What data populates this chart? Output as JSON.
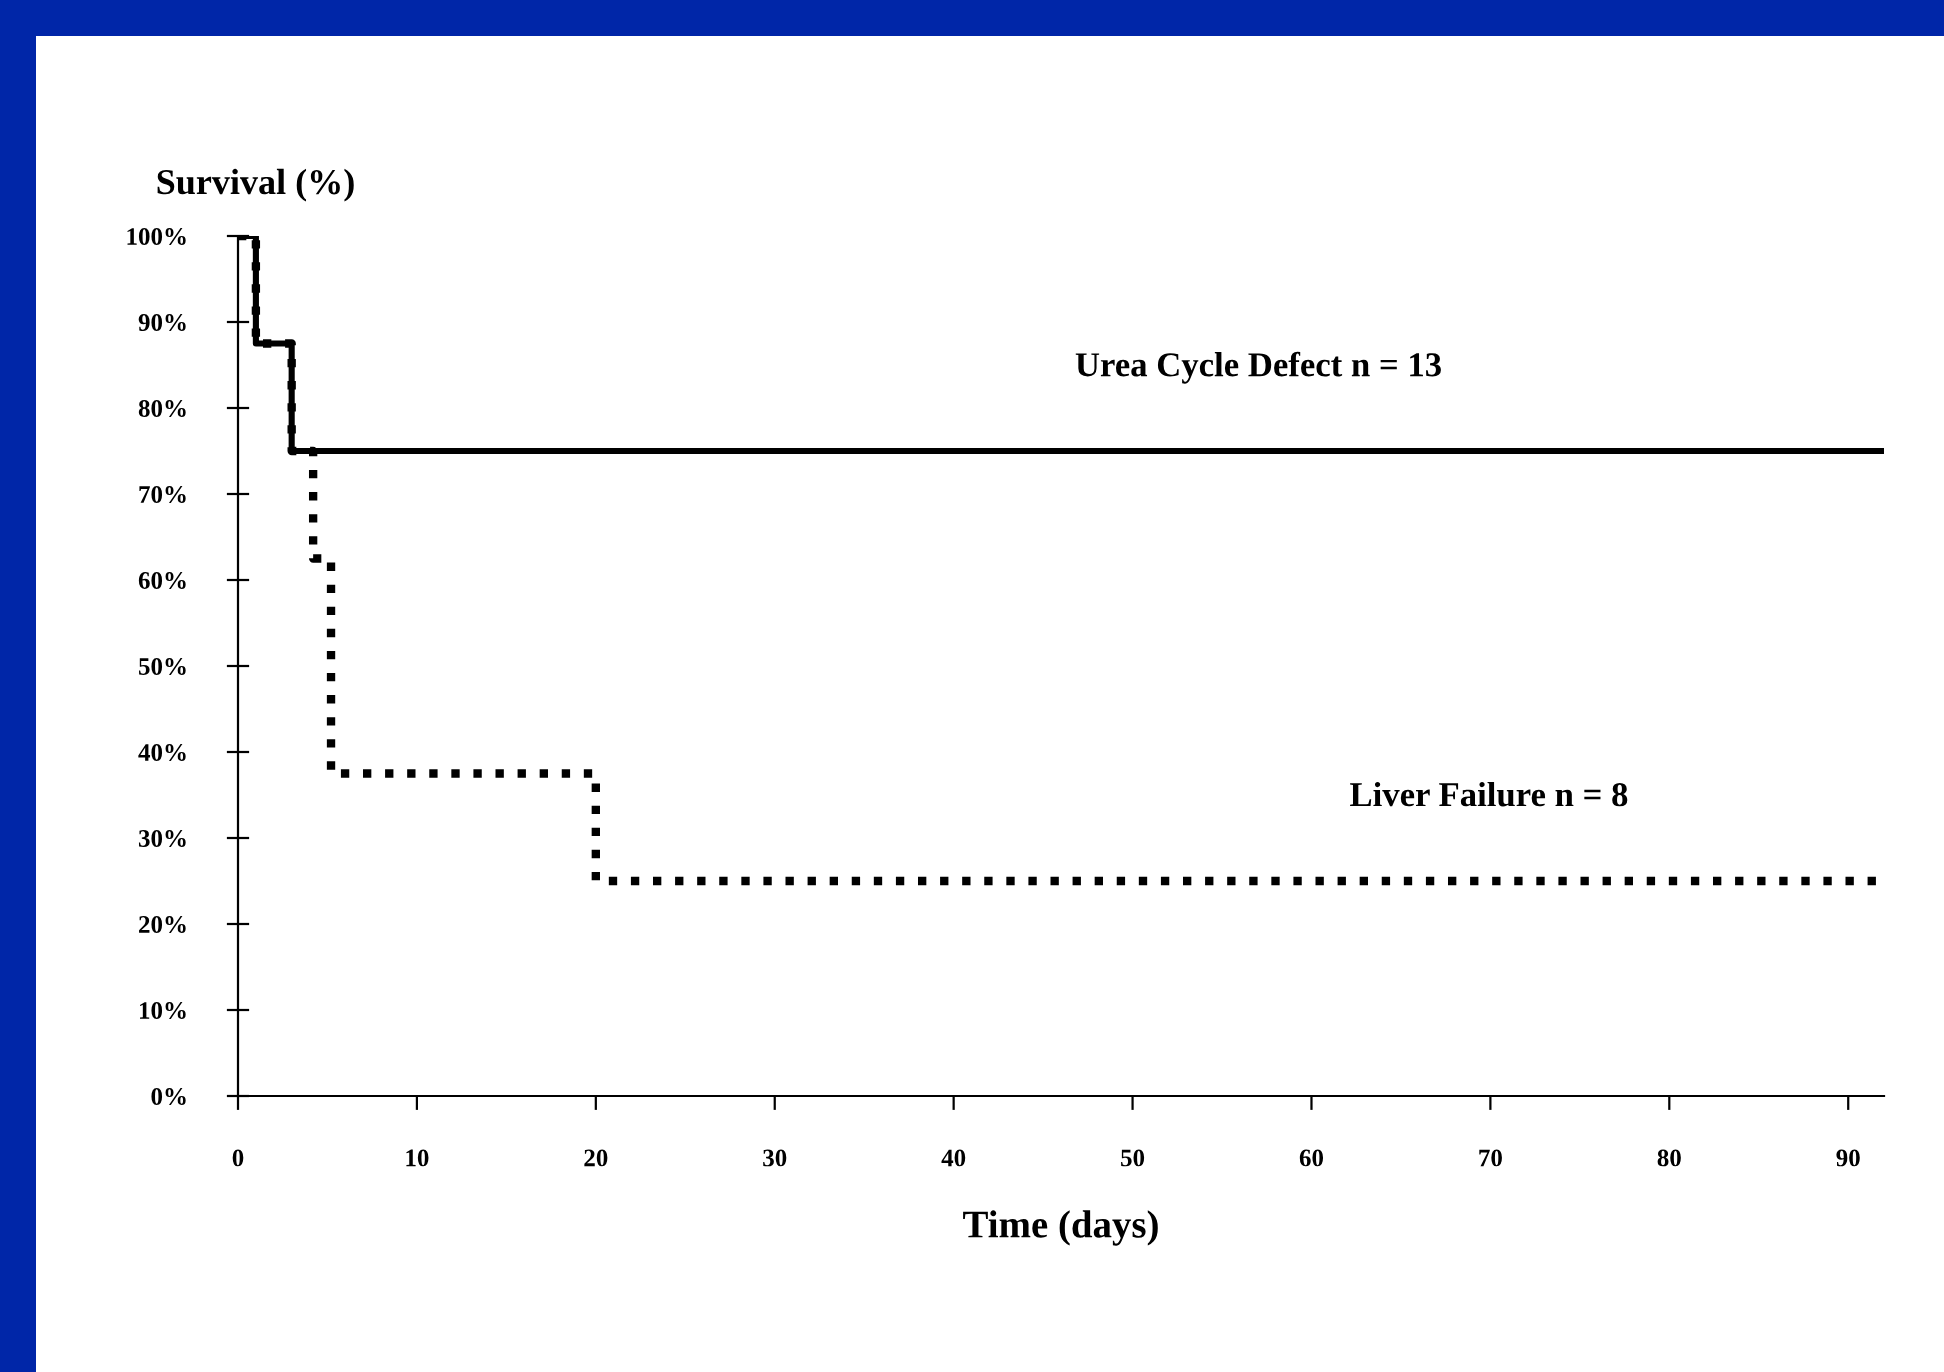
{
  "chart_data": {
    "type": "step",
    "ylabel": "Survival (%)",
    "xlabel": "Time (days)",
    "xlim": [
      0,
      92
    ],
    "xticks": [
      0,
      10,
      20,
      30,
      40,
      50,
      60,
      70,
      80,
      90
    ],
    "ylim": [
      0,
      100
    ],
    "yticks": [
      {
        "value": 0,
        "label": "0%"
      },
      {
        "value": 10,
        "label": "10%"
      },
      {
        "value": 20,
        "label": "20%"
      },
      {
        "value": 30,
        "label": "30%"
      },
      {
        "value": 40,
        "label": "40%"
      },
      {
        "value": 50,
        "label": "50%"
      },
      {
        "value": 60,
        "label": "60%"
      },
      {
        "value": 70,
        "label": "70%"
      },
      {
        "value": 80,
        "label": "80%"
      },
      {
        "value": 90,
        "label": "90%"
      },
      {
        "value": 100,
        "label": "100%"
      }
    ],
    "grid": false,
    "legend": false,
    "marker": "none",
    "series": [
      {
        "name": "Urea Cycle Defect n = 13",
        "color": "#000000",
        "line_style": "solid",
        "x": [
          0,
          1,
          3,
          92
        ],
        "values": [
          100,
          87.5,
          75,
          75
        ]
      },
      {
        "name": "Liver Failure n = 8",
        "color": "#000000",
        "line_style": "dotted",
        "x": [
          0,
          1,
          3,
          4.2,
          5.2,
          20,
          92
        ],
        "values": [
          100,
          87.5,
          75,
          62.5,
          37.5,
          25,
          25
        ]
      }
    ]
  }
}
